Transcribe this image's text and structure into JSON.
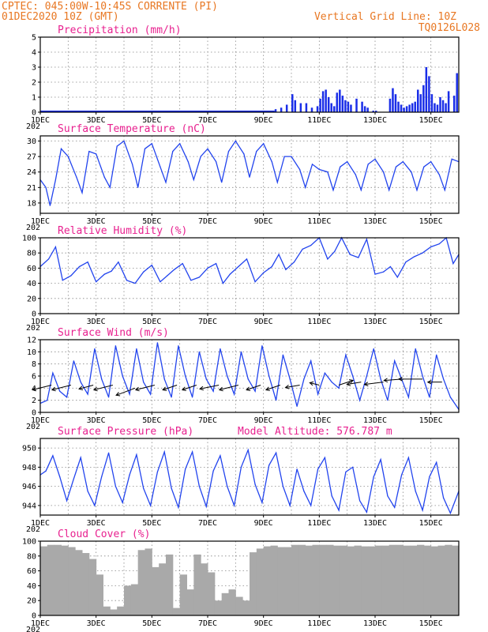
{
  "header": {
    "line1": "CPTEC:   045:00W-10:45S   CORRENTE (PI)",
    "line2": "01DEC2020 10Z (GMT)",
    "grid_note": "Vertical Grid Line: 10Z",
    "code": "TQ0126L028"
  },
  "x_axis": {
    "day_labels": [
      "1DEC",
      "3DEC",
      "5DEC",
      "7DEC",
      "9DEC",
      "11DEC",
      "13DEC",
      "15DEC"
    ],
    "day_positions": [
      1,
      3,
      5,
      7,
      9,
      11,
      13,
      15
    ],
    "year_fragment": "202",
    "range": [
      1,
      16
    ]
  },
  "chart_data": [
    {
      "type": "bar",
      "title": "Precipitation (mm/h)",
      "ylim": [
        0,
        5
      ],
      "yticks": [
        0,
        1,
        2,
        3,
        4,
        5
      ],
      "x": [
        9.4,
        9.6,
        9.8,
        10.0,
        10.1,
        10.3,
        10.5,
        10.7,
        10.9,
        11.0,
        11.1,
        11.2,
        11.3,
        11.4,
        11.5,
        11.6,
        11.7,
        11.8,
        11.9,
        12.0,
        12.1,
        12.3,
        12.5,
        12.6,
        12.7,
        12.9,
        13.0,
        13.5,
        13.6,
        13.7,
        13.8,
        13.9,
        14.0,
        14.1,
        14.2,
        14.3,
        14.4,
        14.5,
        14.6,
        14.7,
        14.8,
        14.9,
        15.0,
        15.1,
        15.2,
        15.3,
        15.4,
        15.5,
        15.6,
        15.8,
        15.9
      ],
      "values": [
        0.2,
        0.3,
        0.5,
        1.2,
        0.8,
        0.6,
        0.6,
        0.3,
        0.4,
        0.9,
        1.4,
        1.5,
        1.0,
        0.6,
        0.4,
        1.3,
        1.5,
        1.1,
        0.8,
        0.7,
        0.5,
        0.9,
        0.7,
        0.4,
        0.3,
        0.1,
        0.1,
        0.9,
        1.6,
        1.2,
        0.7,
        0.5,
        0.3,
        0.4,
        0.5,
        0.6,
        0.7,
        1.5,
        1.2,
        1.8,
        3.0,
        2.4,
        1.2,
        0.6,
        0.5,
        1.0,
        0.8,
        0.6,
        1.4,
        1.1,
        2.6
      ]
    },
    {
      "type": "line",
      "title": "Surface Temperature (nC)",
      "ylim": [
        16,
        31
      ],
      "yticks": [
        18,
        21,
        24,
        27,
        30
      ],
      "x": [
        1.0,
        1.2,
        1.35,
        1.55,
        1.75,
        2.0,
        2.3,
        2.5,
        2.75,
        3.0,
        3.3,
        3.5,
        3.75,
        4.0,
        4.3,
        4.5,
        4.75,
        5.0,
        5.3,
        5.5,
        5.75,
        6.0,
        6.3,
        6.5,
        6.75,
        7.0,
        7.3,
        7.5,
        7.75,
        8.0,
        8.3,
        8.5,
        8.75,
        9.0,
        9.3,
        9.5,
        9.75,
        10.0,
        10.3,
        10.5,
        10.75,
        11.0,
        11.3,
        11.5,
        11.75,
        12.0,
        12.3,
        12.5,
        12.75,
        13.0,
        13.3,
        13.5,
        13.75,
        14.0,
        14.3,
        14.5,
        14.75,
        15.0,
        15.3,
        15.5,
        15.75,
        16.0
      ],
      "values": [
        22.5,
        21.0,
        17.5,
        22.5,
        28.5,
        27.0,
        23.0,
        20.0,
        28.0,
        27.5,
        23.0,
        21.0,
        29.0,
        30.0,
        25.5,
        21.0,
        28.5,
        29.5,
        25.0,
        22.0,
        28.0,
        29.5,
        26.0,
        22.5,
        27.0,
        28.5,
        26.0,
        22.0,
        28.0,
        30.0,
        27.5,
        23.0,
        28.0,
        29.5,
        26.0,
        22.0,
        27.0,
        27.0,
        24.5,
        21.0,
        25.5,
        24.5,
        24.0,
        20.5,
        25.0,
        26.0,
        23.5,
        20.5,
        25.5,
        26.5,
        24.0,
        20.5,
        25.0,
        26.0,
        24.0,
        20.5,
        25.0,
        26.0,
        23.5,
        20.5,
        26.5,
        26.0
      ]
    },
    {
      "type": "line",
      "title": "Relative Humidity (%)",
      "ylim": [
        0,
        100
      ],
      "yticks": [
        0,
        20,
        40,
        60,
        80,
        100
      ],
      "x": [
        1.0,
        1.3,
        1.55,
        1.8,
        2.1,
        2.4,
        2.7,
        3.0,
        3.3,
        3.55,
        3.8,
        4.1,
        4.4,
        4.7,
        5.0,
        5.3,
        5.55,
        5.8,
        6.1,
        6.4,
        6.7,
        7.0,
        7.3,
        7.55,
        7.8,
        8.1,
        8.4,
        8.7,
        9.0,
        9.3,
        9.55,
        9.8,
        10.1,
        10.4,
        10.7,
        11.0,
        11.3,
        11.55,
        11.8,
        12.1,
        12.4,
        12.7,
        13.0,
        13.3,
        13.55,
        13.8,
        14.1,
        14.4,
        14.7,
        15.0,
        15.3,
        15.55,
        15.8,
        16.0
      ],
      "values": [
        62,
        72,
        88,
        44,
        50,
        62,
        68,
        42,
        52,
        56,
        68,
        44,
        40,
        55,
        64,
        42,
        50,
        58,
        66,
        44,
        48,
        60,
        66,
        40,
        52,
        62,
        72,
        42,
        54,
        62,
        78,
        58,
        68,
        85,
        90,
        100,
        72,
        82,
        100,
        78,
        74,
        98,
        52,
        55,
        62,
        48,
        68,
        75,
        80,
        88,
        92,
        100,
        66,
        78
      ]
    },
    {
      "type": "line",
      "title": "Surface Wind (m/s)",
      "ylim": [
        0,
        12
      ],
      "yticks": [
        0,
        2,
        4,
        6,
        8,
        10,
        12
      ],
      "x": [
        1.0,
        1.25,
        1.45,
        1.7,
        1.95,
        2.2,
        2.45,
        2.7,
        2.95,
        3.2,
        3.45,
        3.7,
        3.95,
        4.2,
        4.45,
        4.7,
        4.95,
        5.2,
        5.45,
        5.7,
        5.95,
        6.2,
        6.45,
        6.7,
        6.95,
        7.2,
        7.45,
        7.7,
        7.95,
        8.2,
        8.45,
        8.7,
        8.95,
        9.2,
        9.45,
        9.7,
        9.95,
        10.2,
        10.45,
        10.7,
        10.95,
        11.2,
        11.45,
        11.7,
        11.95,
        12.2,
        12.45,
        12.7,
        12.95,
        13.2,
        13.45,
        13.7,
        13.95,
        14.2,
        14.45,
        14.7,
        14.95,
        15.2,
        15.45,
        15.7,
        16.0
      ],
      "values": [
        1.5,
        2.0,
        6.5,
        3.5,
        2.5,
        8.5,
        5.0,
        3.0,
        10.5,
        5.5,
        2.5,
        11.0,
        6.0,
        3.0,
        10.5,
        5.0,
        3.0,
        11.5,
        5.5,
        2.5,
        11.0,
        6.0,
        2.5,
        10.0,
        5.5,
        3.5,
        10.5,
        6.0,
        3.0,
        10.0,
        5.5,
        3.5,
        11.0,
        6.0,
        2.0,
        9.5,
        5.5,
        1.0,
        5.5,
        8.5,
        3.0,
        6.5,
        5.0,
        4.0,
        9.5,
        6.0,
        2.0,
        6.0,
        10.5,
        5.5,
        2.0,
        8.5,
        5.5,
        2.5,
        10.5,
        6.0,
        2.5,
        9.5,
        5.5,
        2.5,
        0.5
      ]
    },
    {
      "type": "line",
      "title": "Surface Pressure (hPa)",
      "ylim": [
        943,
        951
      ],
      "yticks": [
        944,
        946,
        948,
        950
      ],
      "x": [
        1.0,
        1.2,
        1.45,
        1.7,
        1.95,
        2.2,
        2.45,
        2.7,
        2.95,
        3.2,
        3.45,
        3.7,
        3.95,
        4.2,
        4.45,
        4.7,
        4.95,
        5.2,
        5.45,
        5.7,
        5.95,
        6.2,
        6.45,
        6.7,
        6.95,
        7.2,
        7.45,
        7.7,
        7.95,
        8.2,
        8.45,
        8.7,
        8.95,
        9.2,
        9.45,
        9.7,
        9.95,
        10.2,
        10.45,
        10.7,
        10.95,
        11.2,
        11.45,
        11.7,
        11.95,
        12.2,
        12.45,
        12.7,
        12.95,
        13.2,
        13.45,
        13.7,
        13.95,
        14.2,
        14.45,
        14.7,
        14.95,
        15.2,
        15.45,
        15.7,
        16.0
      ],
      "values": [
        947.2,
        947.6,
        949.2,
        947.0,
        944.5,
        946.8,
        949.0,
        945.5,
        944.0,
        947.0,
        949.5,
        946.0,
        944.3,
        947.2,
        949.3,
        945.8,
        944.0,
        947.5,
        949.6,
        945.8,
        943.8,
        947.8,
        949.6,
        946.0,
        943.9,
        947.6,
        949.2,
        946.0,
        944.0,
        948.0,
        949.8,
        946.2,
        944.3,
        948.2,
        949.5,
        946.0,
        944.0,
        947.8,
        945.5,
        944.0,
        947.8,
        949.0,
        945.0,
        943.5,
        947.5,
        948.0,
        944.5,
        943.3,
        947.0,
        948.8,
        945.0,
        943.8,
        947.2,
        949.0,
        945.5,
        943.5,
        947.0,
        948.5,
        944.8,
        943.2,
        945.5
      ]
    },
    {
      "type": "bar",
      "title": "Cloud Cover (%)",
      "ylim": [
        0,
        100
      ],
      "yticks": [
        0,
        20,
        40,
        60,
        80,
        100
      ],
      "x": [
        1.0,
        1.25,
        1.5,
        1.75,
        2.0,
        2.25,
        2.5,
        2.75,
        3.0,
        3.25,
        3.5,
        3.75,
        4.0,
        4.25,
        4.5,
        4.75,
        5.0,
        5.25,
        5.5,
        5.75,
        6.0,
        6.25,
        6.5,
        6.75,
        7.0,
        7.25,
        7.5,
        7.75,
        8.0,
        8.25,
        8.5,
        8.75,
        9.0,
        9.25,
        9.5,
        9.75,
        10.0,
        10.25,
        10.5,
        10.75,
        11.0,
        11.25,
        11.5,
        11.75,
        12.0,
        12.25,
        12.5,
        12.75,
        13.0,
        13.25,
        13.5,
        13.75,
        14.0,
        14.25,
        14.5,
        14.75,
        15.0,
        15.25,
        15.5,
        15.75
      ],
      "values": [
        93,
        95,
        95,
        94,
        92,
        88,
        84,
        76,
        55,
        12,
        8,
        12,
        40,
        42,
        88,
        90,
        65,
        70,
        82,
        10,
        55,
        35,
        82,
        70,
        58,
        20,
        30,
        35,
        25,
        20,
        85,
        90,
        93,
        94,
        92,
        92,
        95,
        95,
        94,
        95,
        95,
        95,
        94,
        94,
        93,
        94,
        93,
        93,
        94,
        94,
        95,
        95,
        94,
        94,
        95,
        94,
        93,
        94,
        95,
        94
      ]
    }
  ],
  "altitude_label": "Model Altitude: 576.787 m",
  "wind_vectors": {
    "x": [
      1.4,
      2.1,
      2.9,
      3.6,
      4.4,
      5.1,
      5.9,
      6.6,
      7.4,
      8.1,
      8.9,
      9.6,
      10.3,
      11.0,
      11.7,
      12.5,
      13.3,
      14.0,
      14.7,
      15.4
    ],
    "y": [
      4.5,
      4.5,
      4.5,
      4.5,
      4.0,
      4.5,
      4.5,
      4.5,
      4.5,
      4.5,
      4.5,
      4.5,
      4.5,
      4.5,
      4.5,
      5.0,
      5.0,
      5.5,
      5.5,
      5.0
    ],
    "u": [
      2,
      2,
      1.5,
      2,
      2,
      2,
      1.5,
      1.5,
      2,
      2,
      1.5,
      1.5,
      1.5,
      1,
      -1.5,
      1.5,
      2,
      2,
      2.5,
      1.5
    ],
    "v": [
      1,
      1,
      0.8,
      1,
      1.5,
      1,
      1,
      1,
      0.8,
      1,
      1,
      1,
      0.5,
      -0.5,
      -1,
      0.5,
      0.5,
      0.3,
      0,
      0
    ]
  }
}
